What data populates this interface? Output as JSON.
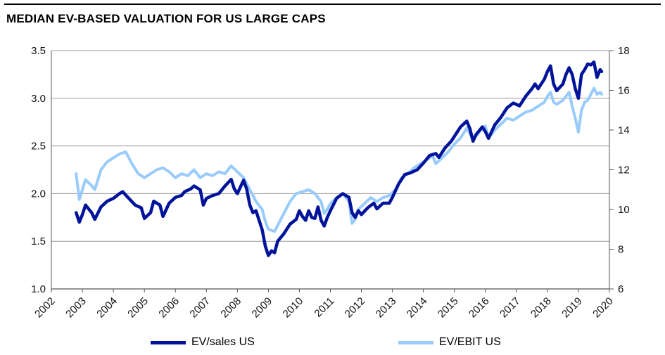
{
  "title": "MEDIAN EV-BASED VALUATION FOR US LARGE CAPS",
  "chart_data": {
    "type": "line",
    "title": "MEDIAN EV-BASED VALUATION FOR US LARGE CAPS",
    "xlabel": "",
    "ylabel": "",
    "x_ticks": [
      "2002",
      "2003",
      "2004",
      "2005",
      "2006",
      "2007",
      "2008",
      "2009",
      "2010",
      "2011",
      "2012",
      "2013",
      "2014",
      "2015",
      "2016",
      "2017",
      "2018",
      "2019",
      "2020"
    ],
    "xlim": [
      2002,
      2020
    ],
    "left_axis": {
      "ticks": [
        "1.0",
        "1.5",
        "2.0",
        "2.5",
        "3.0",
        "3.5"
      ],
      "ylim": [
        1.0,
        3.5
      ]
    },
    "right_axis": {
      "ticks": [
        "6",
        "8",
        "10",
        "12",
        "14",
        "16",
        "18"
      ],
      "ylim": [
        6,
        18
      ]
    },
    "grid": "horizontal",
    "legend_position": "bottom",
    "series": [
      {
        "name": "EV/sales US",
        "axis": "left",
        "color": "#00139a",
        "points": [
          [
            2002.8,
            1.8
          ],
          [
            2002.9,
            1.7
          ],
          [
            2003.0,
            1.78
          ],
          [
            2003.1,
            1.88
          ],
          [
            2003.3,
            1.8
          ],
          [
            2003.4,
            1.73
          ],
          [
            2003.6,
            1.86
          ],
          [
            2003.8,
            1.92
          ],
          [
            2004.0,
            1.95
          ],
          [
            2004.2,
            2.0
          ],
          [
            2004.3,
            2.02
          ],
          [
            2004.5,
            1.95
          ],
          [
            2004.7,
            1.88
          ],
          [
            2004.9,
            1.85
          ],
          [
            2005.0,
            1.74
          ],
          [
            2005.2,
            1.8
          ],
          [
            2005.3,
            1.92
          ],
          [
            2005.5,
            1.88
          ],
          [
            2005.6,
            1.76
          ],
          [
            2005.8,
            1.9
          ],
          [
            2006.0,
            1.96
          ],
          [
            2006.2,
            1.98
          ],
          [
            2006.3,
            2.02
          ],
          [
            2006.5,
            2.05
          ],
          [
            2006.6,
            2.08
          ],
          [
            2006.8,
            2.04
          ],
          [
            2006.9,
            1.88
          ],
          [
            2007.0,
            1.95
          ],
          [
            2007.2,
            1.98
          ],
          [
            2007.4,
            2.0
          ],
          [
            2007.6,
            2.08
          ],
          [
            2007.8,
            2.15
          ],
          [
            2007.9,
            2.05
          ],
          [
            2008.0,
            2.0
          ],
          [
            2008.2,
            2.14
          ],
          [
            2008.3,
            2.05
          ],
          [
            2008.4,
            1.88
          ],
          [
            2008.5,
            1.8
          ],
          [
            2008.6,
            1.82
          ],
          [
            2008.7,
            1.72
          ],
          [
            2008.8,
            1.62
          ],
          [
            2008.9,
            1.45
          ],
          [
            2009.0,
            1.35
          ],
          [
            2009.1,
            1.4
          ],
          [
            2009.2,
            1.38
          ],
          [
            2009.3,
            1.5
          ],
          [
            2009.5,
            1.58
          ],
          [
            2009.7,
            1.68
          ],
          [
            2009.9,
            1.73
          ],
          [
            2010.0,
            1.82
          ],
          [
            2010.1,
            1.76
          ],
          [
            2010.2,
            1.72
          ],
          [
            2010.3,
            1.82
          ],
          [
            2010.4,
            1.75
          ],
          [
            2010.5,
            1.74
          ],
          [
            2010.6,
            1.86
          ],
          [
            2010.7,
            1.72
          ],
          [
            2010.8,
            1.66
          ],
          [
            2010.9,
            1.75
          ],
          [
            2011.0,
            1.82
          ],
          [
            2011.2,
            1.95
          ],
          [
            2011.4,
            2.0
          ],
          [
            2011.6,
            1.96
          ],
          [
            2011.7,
            1.8
          ],
          [
            2011.8,
            1.75
          ],
          [
            2011.9,
            1.82
          ],
          [
            2012.0,
            1.78
          ],
          [
            2012.2,
            1.85
          ],
          [
            2012.4,
            1.9
          ],
          [
            2012.5,
            1.84
          ],
          [
            2012.7,
            1.9
          ],
          [
            2012.9,
            1.9
          ],
          [
            2013.0,
            1.96
          ],
          [
            2013.2,
            2.1
          ],
          [
            2013.4,
            2.2
          ],
          [
            2013.6,
            2.22
          ],
          [
            2013.8,
            2.25
          ],
          [
            2014.0,
            2.32
          ],
          [
            2014.2,
            2.4
          ],
          [
            2014.4,
            2.42
          ],
          [
            2014.5,
            2.38
          ],
          [
            2014.7,
            2.48
          ],
          [
            2014.9,
            2.55
          ],
          [
            2015.0,
            2.6
          ],
          [
            2015.2,
            2.7
          ],
          [
            2015.4,
            2.76
          ],
          [
            2015.5,
            2.68
          ],
          [
            2015.6,
            2.55
          ],
          [
            2015.7,
            2.62
          ],
          [
            2015.9,
            2.7
          ],
          [
            2016.0,
            2.65
          ],
          [
            2016.1,
            2.58
          ],
          [
            2016.3,
            2.72
          ],
          [
            2016.5,
            2.8
          ],
          [
            2016.7,
            2.9
          ],
          [
            2016.9,
            2.95
          ],
          [
            2017.1,
            2.92
          ],
          [
            2017.3,
            3.02
          ],
          [
            2017.5,
            3.1
          ],
          [
            2017.6,
            3.15
          ],
          [
            2017.7,
            3.1
          ],
          [
            2017.9,
            3.2
          ],
          [
            2018.0,
            3.28
          ],
          [
            2018.1,
            3.34
          ],
          [
            2018.2,
            3.15
          ],
          [
            2018.3,
            3.08
          ],
          [
            2018.5,
            3.15
          ],
          [
            2018.6,
            3.25
          ],
          [
            2018.7,
            3.32
          ],
          [
            2018.8,
            3.25
          ],
          [
            2018.9,
            3.1
          ],
          [
            2019.0,
            3.0
          ],
          [
            2019.1,
            3.25
          ],
          [
            2019.2,
            3.3
          ],
          [
            2019.3,
            3.36
          ],
          [
            2019.4,
            3.35
          ],
          [
            2019.5,
            3.38
          ],
          [
            2019.6,
            3.22
          ],
          [
            2019.7,
            3.3
          ],
          [
            2019.75,
            3.28
          ]
        ]
      },
      {
        "name": "EV/EBIT US",
        "axis": "right",
        "color": "#99cbfb",
        "points": [
          [
            2002.8,
            11.8
          ],
          [
            2002.9,
            10.5
          ],
          [
            2003.0,
            11.0
          ],
          [
            2003.1,
            11.5
          ],
          [
            2003.3,
            11.2
          ],
          [
            2003.4,
            11.0
          ],
          [
            2003.6,
            12.0
          ],
          [
            2003.8,
            12.4
          ],
          [
            2004.0,
            12.6
          ],
          [
            2004.2,
            12.8
          ],
          [
            2004.4,
            12.9
          ],
          [
            2004.6,
            12.3
          ],
          [
            2004.8,
            11.8
          ],
          [
            2005.0,
            11.6
          ],
          [
            2005.2,
            11.8
          ],
          [
            2005.4,
            12.0
          ],
          [
            2005.6,
            12.1
          ],
          [
            2005.8,
            11.9
          ],
          [
            2006.0,
            11.6
          ],
          [
            2006.2,
            11.8
          ],
          [
            2006.4,
            11.7
          ],
          [
            2006.6,
            12.0
          ],
          [
            2006.8,
            11.6
          ],
          [
            2007.0,
            11.8
          ],
          [
            2007.2,
            11.7
          ],
          [
            2007.4,
            11.9
          ],
          [
            2007.6,
            11.8
          ],
          [
            2007.8,
            12.2
          ],
          [
            2008.0,
            11.9
          ],
          [
            2008.2,
            11.6
          ],
          [
            2008.4,
            11.0
          ],
          [
            2008.6,
            10.4
          ],
          [
            2008.8,
            10.0
          ],
          [
            2008.9,
            9.4
          ],
          [
            2009.0,
            9.0
          ],
          [
            2009.2,
            8.9
          ],
          [
            2009.3,
            9.2
          ],
          [
            2009.5,
            9.8
          ],
          [
            2009.7,
            10.4
          ],
          [
            2009.9,
            10.8
          ],
          [
            2010.1,
            10.9
          ],
          [
            2010.3,
            11.0
          ],
          [
            2010.5,
            10.8
          ],
          [
            2010.6,
            10.6
          ],
          [
            2010.7,
            10.4
          ],
          [
            2010.8,
            9.8
          ],
          [
            2010.9,
            10.0
          ],
          [
            2011.0,
            10.3
          ],
          [
            2011.2,
            10.6
          ],
          [
            2011.4,
            10.8
          ],
          [
            2011.6,
            10.4
          ],
          [
            2011.7,
            9.3
          ],
          [
            2011.8,
            9.5
          ],
          [
            2011.9,
            10.0
          ],
          [
            2012.1,
            10.3
          ],
          [
            2012.3,
            10.6
          ],
          [
            2012.5,
            10.4
          ],
          [
            2012.7,
            10.6
          ],
          [
            2012.9,
            10.7
          ],
          [
            2013.1,
            11.0
          ],
          [
            2013.3,
            11.6
          ],
          [
            2013.5,
            11.8
          ],
          [
            2013.7,
            12.1
          ],
          [
            2013.9,
            12.3
          ],
          [
            2014.1,
            12.5
          ],
          [
            2014.3,
            12.7
          ],
          [
            2014.4,
            12.3
          ],
          [
            2014.6,
            12.6
          ],
          [
            2014.8,
            12.9
          ],
          [
            2015.0,
            13.3
          ],
          [
            2015.2,
            13.6
          ],
          [
            2015.4,
            14.1
          ],
          [
            2015.5,
            13.8
          ],
          [
            2015.6,
            13.5
          ],
          [
            2015.8,
            13.9
          ],
          [
            2016.0,
            14.2
          ],
          [
            2016.1,
            13.6
          ],
          [
            2016.3,
            14.0
          ],
          [
            2016.5,
            14.3
          ],
          [
            2016.7,
            14.6
          ],
          [
            2016.9,
            14.5
          ],
          [
            2017.1,
            14.7
          ],
          [
            2017.3,
            14.9
          ],
          [
            2017.5,
            15.0
          ],
          [
            2017.7,
            15.2
          ],
          [
            2017.9,
            15.4
          ],
          [
            2018.0,
            15.7
          ],
          [
            2018.1,
            15.9
          ],
          [
            2018.2,
            15.4
          ],
          [
            2018.3,
            15.3
          ],
          [
            2018.5,
            15.5
          ],
          [
            2018.7,
            15.9
          ],
          [
            2018.8,
            15.2
          ],
          [
            2018.9,
            14.6
          ],
          [
            2019.0,
            13.9
          ],
          [
            2019.1,
            15.0
          ],
          [
            2019.2,
            15.4
          ],
          [
            2019.3,
            15.5
          ],
          [
            2019.4,
            15.8
          ],
          [
            2019.5,
            16.1
          ],
          [
            2019.6,
            15.8
          ],
          [
            2019.7,
            15.9
          ],
          [
            2019.75,
            15.8
          ]
        ]
      }
    ]
  }
}
